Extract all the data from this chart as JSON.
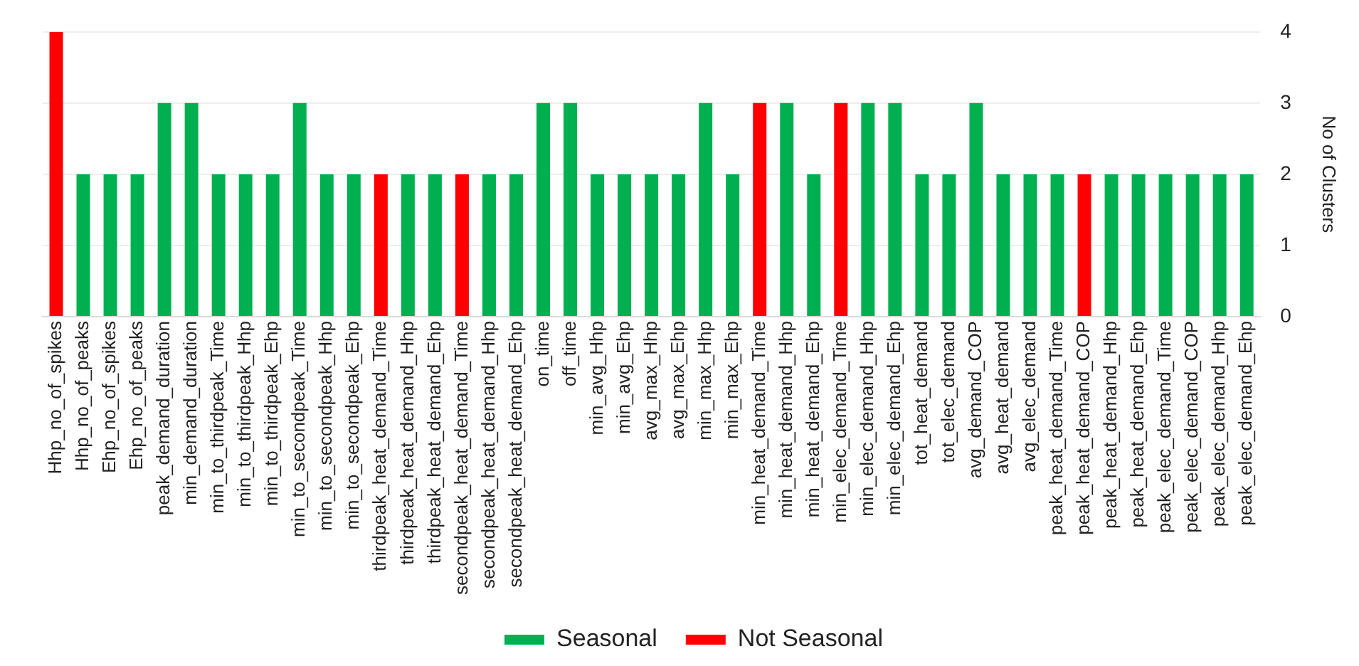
{
  "chart_data": {
    "type": "bar",
    "ylabel": "No of Clusters",
    "stacked": true,
    "grid": "y",
    "legend": "bottom",
    "ylim": [
      0,
      4
    ],
    "yticks": [
      0,
      1,
      2,
      3,
      4
    ],
    "categories": [
      "Hhp_no_of_spikes",
      "Hhp_no_of_peaks",
      "Ehp_no_of_spikes",
      "Ehp_no_of_peaks",
      "peak_demand_duration",
      "min_demand_duration",
      "min_to_thirdpeak_Time",
      "min_to_thirdpeak_Hhp",
      "min_to_thirdpeak_Ehp",
      "min_to_secondpeak_Time",
      "min_to_secondpeak_Hhp",
      "min_to_secondpeak_Ehp",
      "thirdpeak_heat_demand_Time",
      "thirdpeak_heat_demand_Hhp",
      "thirdpeak_heat_demand_Ehp",
      "secondpeak_heat_demand_Time",
      "secondpeak_heat_demand_Hhp",
      "secondpeak_heat_demand_Ehp",
      "on_time",
      "off_time",
      "min_avg_Hhp",
      "min_avg_Ehp",
      "avg_max_Hhp",
      "avg_max_Ehp",
      "min_max_Hhp",
      "min_max_Ehp",
      "min_heat_demand_Time",
      "min_heat_demand_Hhp",
      "min_heat_demand_Ehp",
      "min_elec_demand_Time",
      "min_elec_demand_Hhp",
      "min_elec_demand_Ehp",
      "tot_heat_demand",
      "tot_elec_demand",
      "avg_demand_COP",
      "avg_heat_demand",
      "avg_elec_demand",
      "peak_heat_demand_Time",
      "peak_heat_demand_COP",
      "peak_heat_demand_Hhp",
      "peak_heat_demand_Ehp",
      "peak_elec_demand_Time",
      "peak_elec_demand_COP",
      "peak_elec_demand_Hhp",
      "peak_elec_demand_Ehp"
    ],
    "series": [
      {
        "name": "Seasonal",
        "color": "#00b050",
        "values": [
          null,
          2,
          2,
          2,
          3,
          3,
          2,
          2,
          2,
          3,
          2,
          2,
          null,
          2,
          2,
          null,
          2,
          2,
          3,
          3,
          2,
          2,
          2,
          2,
          3,
          2,
          null,
          3,
          2,
          null,
          3,
          3,
          2,
          2,
          3,
          2,
          2,
          2,
          null,
          2,
          2,
          2,
          2,
          2,
          2
        ]
      },
      {
        "name": "Not Seasonal",
        "color": "#ff0000",
        "values": [
          4,
          null,
          null,
          null,
          null,
          null,
          null,
          null,
          null,
          null,
          null,
          null,
          2,
          null,
          null,
          2,
          null,
          null,
          null,
          null,
          null,
          null,
          null,
          null,
          null,
          null,
          3,
          null,
          null,
          3,
          null,
          null,
          null,
          null,
          null,
          null,
          null,
          null,
          2,
          null,
          null,
          null,
          null,
          null,
          null
        ]
      }
    ]
  }
}
